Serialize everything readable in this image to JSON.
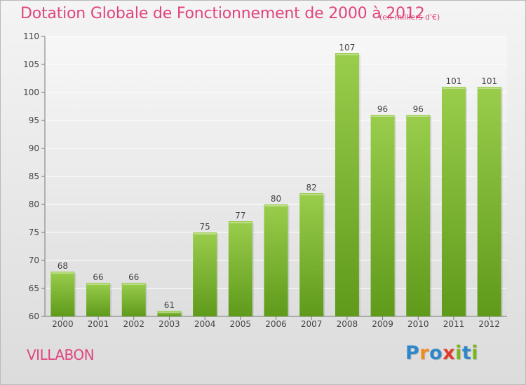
{
  "title": "Dotation Globale de Fonctionnement de 2000 à 2012",
  "title_unit": "(en milliers d'€)",
  "commune": "VILLABON",
  "logo": {
    "letters": [
      "P",
      "r",
      "o",
      "x",
      "i",
      "t",
      "i"
    ],
    "colors": [
      "#2f86c8",
      "#f08a1c",
      "#2f86c8",
      "#e23a2a",
      "#7ab51d",
      "#2f86c8",
      "#7ab51d"
    ]
  },
  "colors": {
    "accent": "#e0457e",
    "bar_top": "#9acd4c",
    "bar_bottom": "#5f9a1a",
    "background_top": "#f4f4f4",
    "background_bottom": "#dcdcdc"
  },
  "chart_data": {
    "type": "bar",
    "title": "Dotation Globale de Fonctionnement de 2000 à 2012",
    "subtitle": "(en milliers d'€)",
    "categories": [
      "2000",
      "2001",
      "2002",
      "2003",
      "2004",
      "2005",
      "2006",
      "2007",
      "2008",
      "2009",
      "2010",
      "2011",
      "2012"
    ],
    "values": [
      68,
      66,
      66,
      61,
      75,
      77,
      80,
      82,
      107,
      96,
      96,
      101,
      101
    ],
    "ylim": [
      60,
      110
    ],
    "yticks": [
      60,
      65,
      70,
      75,
      80,
      85,
      90,
      95,
      100,
      105,
      110
    ],
    "grid": true,
    "data_labels": true
  }
}
